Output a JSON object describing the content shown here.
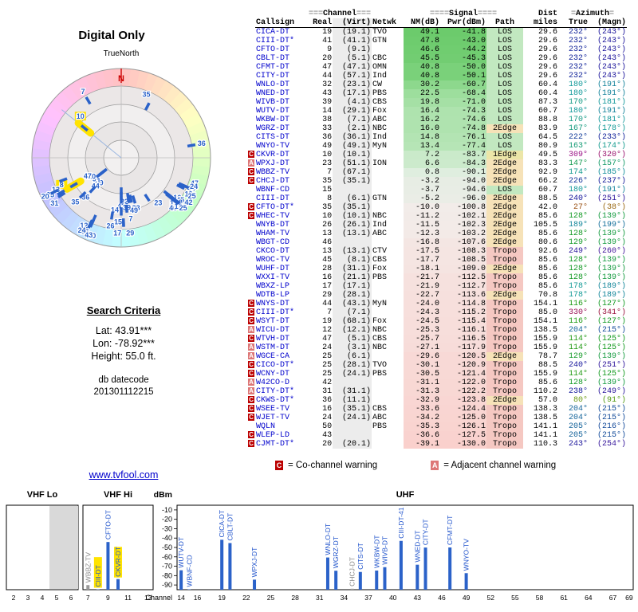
{
  "left_panel": {
    "plot_title": "Digital Only",
    "true_north": "TrueNorth",
    "north": "N",
    "criteria_heading": "Search Criteria",
    "lat": "Lat: 43.91***",
    "lon": "Lon: -78.92***",
    "height": "Height: 55.0 ft.",
    "datecode_label": "db datecode",
    "datecode_value": "201301112215",
    "site_link": "www.tvfool.com"
  },
  "table": {
    "group_header": {
      "channel_pre": "===",
      "channel": "Channel",
      "channel_post": "===",
      "signal_pre": "====",
      "signal": "Signal",
      "signal_post": "====",
      "dist": "Dist",
      "azimuth_pre": "=",
      "azimuth": "Azimuth",
      "azimuth_post": "="
    },
    "columns": [
      "Callsign",
      "Real",
      "(Virt)",
      "Netwk",
      "NM(dB)",
      "Pwr(dBm)",
      "Path",
      "miles",
      "True",
      "(Magn)"
    ],
    "rows": [
      {
        "w": "",
        "cs": "CICA-DT",
        "real": 19,
        "virt": "(19.1)",
        "net": "TVO",
        "nm": 49.1,
        "pwr": -41.8,
        "path": "LOS",
        "mi": 29.6,
        "az": 232,
        "mag": 243
      },
      {
        "w": "",
        "cs": "CIII-DT*",
        "real": 41,
        "virt": "(41.1)",
        "net": "GTN",
        "nm": 47.8,
        "pwr": -43.0,
        "path": "LOS",
        "mi": 29.6,
        "az": 232,
        "mag": 243
      },
      {
        "w": "",
        "cs": "CFTO-DT",
        "real": 9,
        "virt": "(9.1)",
        "net": "",
        "nm": 46.6,
        "pwr": -44.2,
        "path": "LOS",
        "mi": 29.6,
        "az": 232,
        "mag": 243
      },
      {
        "w": "",
        "cs": "CBLT-DT",
        "real": 20,
        "virt": "(5.1)",
        "net": "CBC",
        "nm": 45.5,
        "pwr": -45.3,
        "path": "LOS",
        "mi": 29.6,
        "az": 232,
        "mag": 243
      },
      {
        "w": "",
        "cs": "CFMT-DT",
        "real": 47,
        "virt": "(47.1)",
        "net": "OMN",
        "nm": 40.8,
        "pwr": -50.0,
        "path": "LOS",
        "mi": 29.6,
        "az": 232,
        "mag": 243
      },
      {
        "w": "",
        "cs": "CITY-DT",
        "real": 44,
        "virt": "(57.1)",
        "net": "Ind",
        "nm": 40.8,
        "pwr": -50.1,
        "path": "LOS",
        "mi": 29.6,
        "az": 232,
        "mag": 243
      },
      {
        "w": "",
        "cs": "WNLO-DT",
        "real": 32,
        "virt": "(23.1)",
        "net": "CW",
        "nm": 30.2,
        "pwr": -60.7,
        "path": "LOS",
        "mi": 60.4,
        "az": 180,
        "mag": 191
      },
      {
        "w": "",
        "cs": "WNED-DT",
        "real": 43,
        "virt": "(17.1)",
        "net": "PBS",
        "nm": 22.5,
        "pwr": -68.4,
        "path": "LOS",
        "mi": 60.4,
        "az": 180,
        "mag": 191
      },
      {
        "w": "",
        "cs": "WIVB-DT",
        "real": 39,
        "virt": "(4.1)",
        "net": "CBS",
        "nm": 19.8,
        "pwr": -71.0,
        "path": "LOS",
        "mi": 87.3,
        "az": 170,
        "mag": 181
      },
      {
        "w": "",
        "cs": "WUTV-DT",
        "real": 14,
        "virt": "(29.1)",
        "net": "Fox",
        "nm": 16.4,
        "pwr": -74.3,
        "path": "LOS",
        "mi": 60.7,
        "az": 180,
        "mag": 191
      },
      {
        "w": "",
        "cs": "WKBW-DT",
        "real": 38,
        "virt": "(7.1)",
        "net": "ABC",
        "nm": 16.2,
        "pwr": -74.6,
        "path": "LOS",
        "mi": 88.8,
        "az": 170,
        "mag": 181
      },
      {
        "w": "",
        "cs": "WGRZ-DT",
        "real": 33,
        "virt": "(2.1)",
        "net": "NBC",
        "nm": 16.0,
        "pwr": -74.8,
        "path": "2Edge",
        "mi": 83.9,
        "az": 167,
        "mag": 178
      },
      {
        "w": "",
        "cs": "CITS-DT",
        "real": 36,
        "virt": "(36.1)",
        "net": "Ind",
        "nm": 14.8,
        "pwr": -76.1,
        "path": "LOS",
        "mi": 64.5,
        "az": 222,
        "mag": 233
      },
      {
        "w": "",
        "cs": "WNYO-TV",
        "real": 49,
        "virt": "(49.1)",
        "net": "MyN",
        "nm": 13.4,
        "pwr": -77.4,
        "path": "LOS",
        "mi": 80.9,
        "az": 163,
        "mag": 174
      },
      {
        "w": "C",
        "cs": "CKVR-DT",
        "real": 10,
        "virt": "(10.1)",
        "net": "",
        "nm": 7.2,
        "pwr": -83.7,
        "path": "1Edge",
        "mi": 49.5,
        "az": 309,
        "mag": 320
      },
      {
        "w": "A",
        "cs": "WPXJ-DT",
        "real": 23,
        "virt": "(51.1)",
        "net": "ION",
        "nm": 6.6,
        "pwr": -84.3,
        "path": "2Edge",
        "mi": 83.3,
        "az": 147,
        "mag": 157
      },
      {
        "w": "C",
        "cs": "WBBZ-TV",
        "real": 7,
        "virt": "(67.1)",
        "net": "",
        "nm": 0.8,
        "pwr": -90.1,
        "path": "2Edge",
        "mi": 92.9,
        "az": 174,
        "mag": 185
      },
      {
        "w": "C",
        "cs": "CHCJ-DT",
        "real": 35,
        "virt": "(35.1)",
        "net": "",
        "nm": -3.2,
        "pwr": -94.0,
        "path": "2Edge",
        "mi": 66.2,
        "az": 226,
        "mag": 237
      },
      {
        "w": "",
        "cs": "WBNF-CD",
        "real": 15,
        "virt": "",
        "net": "",
        "nm": -3.7,
        "pwr": -94.6,
        "path": "LOS",
        "mi": 60.7,
        "az": 180,
        "mag": 191
      },
      {
        "w": "",
        "cs": "CIII-DT",
        "real": 8,
        "virt": "(6.1)",
        "net": "GTN",
        "nm": -5.2,
        "pwr": -96.0,
        "path": "2Edge",
        "mi": 88.5,
        "az": 240,
        "mag": 251
      },
      {
        "w": "C",
        "cs": "CFTO-DT*",
        "real": 35,
        "virt": "(35.1)",
        "net": "",
        "nm": -10.0,
        "pwr": -100.8,
        "path": "2Edge",
        "mi": 42.0,
        "az": 27,
        "mag": 38
      },
      {
        "w": "C",
        "cs": "WHEC-TV",
        "real": 10,
        "virt": "(10.1)",
        "net": "NBC",
        "nm": -11.2,
        "pwr": -102.1,
        "path": "2Edge",
        "mi": 85.6,
        "az": 128,
        "mag": 139
      },
      {
        "w": "",
        "cs": "WNYB-DT",
        "real": 26,
        "virt": "(26.1)",
        "net": "Ind",
        "nm": -11.5,
        "pwr": -102.3,
        "path": "2Edge",
        "mi": 105.5,
        "az": 189,
        "mag": 199
      },
      {
        "w": "",
        "cs": "WHAM-TV",
        "real": 13,
        "virt": "(13.1)",
        "net": "ABC",
        "nm": -12.3,
        "pwr": -103.2,
        "path": "2Edge",
        "mi": 85.6,
        "az": 128,
        "mag": 139
      },
      {
        "w": "",
        "cs": "WBGT-CD",
        "real": 46,
        "virt": "",
        "net": "",
        "nm": -16.8,
        "pwr": -107.6,
        "path": "2Edge",
        "mi": 80.6,
        "az": 129,
        "mag": 139
      },
      {
        "w": "",
        "cs": "CKCO-DT",
        "real": 13,
        "virt": "(13.1)",
        "net": "CTV",
        "nm": -17.5,
        "pwr": -108.3,
        "path": "Tropo",
        "mi": 92.6,
        "az": 249,
        "mag": 260
      },
      {
        "w": "",
        "cs": "WROC-TV",
        "real": 45,
        "virt": "(8.1)",
        "net": "CBS",
        "nm": -17.7,
        "pwr": -108.5,
        "path": "Tropo",
        "mi": 85.6,
        "az": 128,
        "mag": 139
      },
      {
        "w": "",
        "cs": "WUHF-DT",
        "real": 28,
        "virt": "(31.1)",
        "net": "Fox",
        "nm": -18.1,
        "pwr": -109.0,
        "path": "2Edge",
        "mi": 85.6,
        "az": 128,
        "mag": 139
      },
      {
        "w": "",
        "cs": "WXXI-TV",
        "real": 16,
        "virt": "(21.1)",
        "net": "PBS",
        "nm": -21.7,
        "pwr": -112.5,
        "path": "Tropo",
        "mi": 85.6,
        "az": 128,
        "mag": 139
      },
      {
        "w": "",
        "cs": "WBXZ-LP",
        "real": 17,
        "virt": "(17.1)",
        "net": "",
        "nm": -21.9,
        "pwr": -112.7,
        "path": "Tropo",
        "mi": 85.6,
        "az": 178,
        "mag": 189
      },
      {
        "w": "",
        "cs": "WDTB-LP",
        "real": 29,
        "virt": "(28.1)",
        "net": "",
        "nm": -22.7,
        "pwr": -113.6,
        "path": "2Edge",
        "mi": 70.8,
        "az": 178,
        "mag": 189
      },
      {
        "w": "C",
        "cs": "WNYS-DT",
        "real": 44,
        "virt": "(43.1)",
        "net": "MyN",
        "nm": -24.0,
        "pwr": -114.8,
        "path": "Tropo",
        "mi": 154.1,
        "az": 116,
        "mag": 127
      },
      {
        "w": "C",
        "cs": "CIII-DT*",
        "real": 7,
        "virt": "(7.1)",
        "net": "",
        "nm": -24.3,
        "pwr": -115.2,
        "path": "Tropo",
        "mi": 85.0,
        "az": 330,
        "mag": 341
      },
      {
        "w": "C",
        "cs": "WSYT-DT",
        "real": 19,
        "virt": "(68.1)",
        "net": "Fox",
        "nm": -24.5,
        "pwr": -115.4,
        "path": "Tropo",
        "mi": 154.1,
        "az": 116,
        "mag": 127
      },
      {
        "w": "A",
        "cs": "WICU-DT",
        "real": 12,
        "virt": "(12.1)",
        "net": "NBC",
        "nm": -25.3,
        "pwr": -116.1,
        "path": "Tropo",
        "mi": 138.5,
        "az": 204,
        "mag": 215
      },
      {
        "w": "C",
        "cs": "WTVH-DT",
        "real": 47,
        "virt": "(5.1)",
        "net": "CBS",
        "nm": -25.7,
        "pwr": -116.5,
        "path": "Tropo",
        "mi": 155.9,
        "az": 114,
        "mag": 125
      },
      {
        "w": "A",
        "cs": "WSTM-DT",
        "real": 24,
        "virt": "(3.1)",
        "net": "NBC",
        "nm": -27.1,
        "pwr": -117.9,
        "path": "Tropo",
        "mi": 155.9,
        "az": 114,
        "mag": 125
      },
      {
        "w": "A",
        "cs": "WGCE-CA",
        "real": 25,
        "virt": "(6.1)",
        "net": "",
        "nm": -29.6,
        "pwr": -120.5,
        "path": "2Edge",
        "mi": 78.7,
        "az": 129,
        "mag": 139
      },
      {
        "w": "C",
        "cs": "CICO-DT*",
        "real": 25,
        "virt": "(28.1)",
        "net": "TVO",
        "nm": -30.1,
        "pwr": -120.9,
        "path": "Tropo",
        "mi": 88.5,
        "az": 240,
        "mag": 251
      },
      {
        "w": "C",
        "cs": "WCNY-DT",
        "real": 25,
        "virt": "(24.1)",
        "net": "PBS",
        "nm": -30.5,
        "pwr": -121.4,
        "path": "Tropo",
        "mi": 155.9,
        "az": 114,
        "mag": 125
      },
      {
        "w": "A",
        "cs": "W42CO-D",
        "real": 42,
        "virt": "",
        "net": "",
        "nm": -31.1,
        "pwr": -122.0,
        "path": "Tropo",
        "mi": 85.6,
        "az": 128,
        "mag": 139
      },
      {
        "w": "A",
        "cs": "CITY-DT*",
        "real": 31,
        "virt": "(31.1)",
        "net": "",
        "nm": -31.3,
        "pwr": -122.2,
        "path": "Tropo",
        "mi": 110.2,
        "az": 238,
        "mag": 249
      },
      {
        "w": "C",
        "cs": "CKWS-DT*",
        "real": 36,
        "virt": "(11.1)",
        "net": "",
        "nm": -32.9,
        "pwr": -123.8,
        "path": "2Edge",
        "mi": 57.0,
        "az": 80,
        "mag": 91
      },
      {
        "w": "C",
        "cs": "WSEE-TV",
        "real": 16,
        "virt": "(35.1)",
        "net": "CBS",
        "nm": -33.6,
        "pwr": -124.4,
        "path": "Tropo",
        "mi": 138.3,
        "az": 204,
        "mag": 215
      },
      {
        "w": "C",
        "cs": "WJET-TV",
        "real": 24,
        "virt": "(24.1)",
        "net": "ABC",
        "nm": -34.2,
        "pwr": -125.0,
        "path": "Tropo",
        "mi": 138.5,
        "az": 204,
        "mag": 215
      },
      {
        "w": "",
        "cs": "WQLN",
        "real": 50,
        "virt": "",
        "net": "PBS",
        "nm": -35.3,
        "pwr": -126.1,
        "path": "Tropo",
        "mi": 141.1,
        "az": 205,
        "mag": 216
      },
      {
        "w": "C",
        "cs": "WLEP-LD",
        "real": 43,
        "virt": "",
        "net": "",
        "nm": -36.6,
        "pwr": -127.5,
        "path": "Tropo",
        "mi": 141.1,
        "az": 205,
        "mag": 215
      },
      {
        "w": "C",
        "cs": "CJMT-DT*",
        "real": 20,
        "virt": "(20.1)",
        "net": "",
        "nm": -39.1,
        "pwr": -130.0,
        "path": "Tropo",
        "mi": 110.3,
        "az": 243,
        "mag": 254
      }
    ]
  },
  "legend": {
    "co_letter": "C",
    "co_text": "= Co-channel warning",
    "adj_letter": "A",
    "adj_text": "= Adjacent channel warning"
  },
  "polar": {
    "highlights": [
      "CKVR-DT",
      "CIII-DT"
    ]
  },
  "chart_data": {
    "type": "bar",
    "title": "",
    "ylabel": "dBm",
    "xlabel": "Channel",
    "ylim": [
      -95,
      -5
    ],
    "yticks": [
      -10,
      -20,
      -30,
      -40,
      -50,
      -60,
      -70,
      -80,
      -90
    ],
    "bands": [
      {
        "label": "VHF Lo",
        "min": 2,
        "max": 6,
        "ticks": [
          2,
          3,
          4,
          5,
          6
        ],
        "shaded": [
          5,
          6
        ]
      },
      {
        "label": "VHF Hi",
        "min": 7,
        "max": 13,
        "ticks": [
          7,
          9,
          11,
          13
        ],
        "shaded": []
      },
      {
        "label": "UHF",
        "min": 14,
        "max": 69,
        "ticks": [
          14,
          16,
          19,
          22,
          25,
          28,
          31,
          34,
          37,
          40,
          43,
          46,
          49,
          52,
          55,
          58,
          61,
          64,
          67,
          69
        ],
        "shaded": []
      }
    ],
    "stations": [
      {
        "callsign": "WBBZ-TV",
        "ch": 7,
        "dbm": -90.1,
        "style": "gray"
      },
      {
        "callsign": "CIII-DT",
        "ch": 8,
        "dbm": -96.0,
        "style": "hl"
      },
      {
        "callsign": "CFTO-DT",
        "ch": 9,
        "dbm": -44.2,
        "style": "blue"
      },
      {
        "callsign": "CKVR-DT",
        "ch": 10,
        "dbm": -83.7,
        "style": "hl"
      },
      {
        "callsign": "WUTV-DT",
        "ch": 14,
        "dbm": -74.3,
        "style": "blue"
      },
      {
        "callsign": "WBNF-CD",
        "ch": 15,
        "dbm": -94.6,
        "style": "blue"
      },
      {
        "callsign": "CICA-DT",
        "ch": 19,
        "dbm": -41.8,
        "style": "blue"
      },
      {
        "callsign": "CBLT-DT",
        "ch": 20,
        "dbm": -45.3,
        "style": "blue"
      },
      {
        "callsign": "WPXJ-DT",
        "ch": 23,
        "dbm": -84.3,
        "style": "blue"
      },
      {
        "callsign": "WNLO-DT",
        "ch": 32,
        "dbm": -60.7,
        "style": "blue"
      },
      {
        "callsign": "WGRZ-DT",
        "ch": 33,
        "dbm": -74.8,
        "style": "blue"
      },
      {
        "callsign": "CHCJ-DT",
        "ch": 35,
        "dbm": -94.0,
        "style": "gray"
      },
      {
        "callsign": "CITS-DT",
        "ch": 36,
        "dbm": -76.1,
        "style": "blue"
      },
      {
        "callsign": "WKBW-DT",
        "ch": 38,
        "dbm": -74.6,
        "style": "blue"
      },
      {
        "callsign": "WIVB-DT",
        "ch": 39,
        "dbm": -71.0,
        "style": "blue"
      },
      {
        "callsign": "CIII-DT-41",
        "ch": 41,
        "dbm": -43.0,
        "style": "blue"
      },
      {
        "callsign": "WNED-DT",
        "ch": 43,
        "dbm": -68.4,
        "style": "blue"
      },
      {
        "callsign": "CITY-DT",
        "ch": 44,
        "dbm": -50.1,
        "style": "blue"
      },
      {
        "callsign": "CFMT-DT",
        "ch": 47,
        "dbm": -50.0,
        "style": "blue"
      },
      {
        "callsign": "WNYO-TV",
        "ch": 49,
        "dbm": -77.4,
        "style": "blue"
      }
    ]
  }
}
